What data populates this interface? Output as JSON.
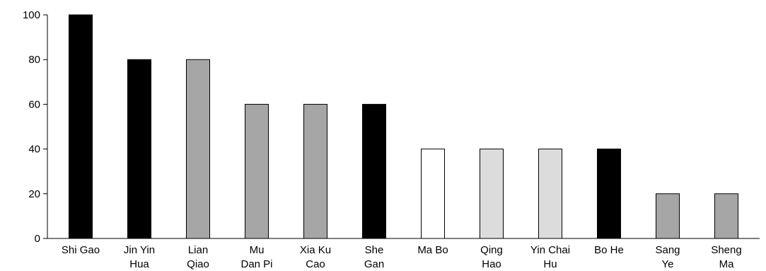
{
  "chart_data": {
    "type": "bar",
    "title": "",
    "xlabel": "",
    "ylabel": "",
    "ylim": [
      0,
      100
    ],
    "yticks": [
      0,
      20,
      40,
      60,
      80,
      100
    ],
    "grid": false,
    "legend": "none",
    "categories": [
      "Shi Gao",
      "Jin Yin Hua",
      "Lian Qiao",
      "Mu Dan Pi",
      "Xia Ku Cao",
      "She Gan",
      "Ma Bo",
      "Qing Hao",
      "Yin Chai Hu",
      "Bo He",
      "Sang Ye",
      "Sheng Ma"
    ],
    "category_label_lines": [
      [
        "Shi Gao"
      ],
      [
        "Jin Yin",
        "Hua"
      ],
      [
        "Lian",
        "Qiao"
      ],
      [
        "Mu",
        "Dan Pi"
      ],
      [
        "Xia Ku",
        "Cao"
      ],
      [
        "She",
        "Gan"
      ],
      [
        "Ma Bo"
      ],
      [
        "Qing",
        "Hao"
      ],
      [
        "Yin Chai",
        "Hu"
      ],
      [
        "Bo He"
      ],
      [
        "Sang",
        "Ye"
      ],
      [
        "Sheng",
        "Ma"
      ]
    ],
    "values": [
      100,
      80,
      80,
      60,
      60,
      60,
      40,
      40,
      40,
      40,
      20,
      20
    ],
    "bar_colors": [
      "#000000",
      "#000000",
      "#a6a6a6",
      "#a6a6a6",
      "#a6a6a6",
      "#000000",
      "#ffffff",
      "#dcdcdc",
      "#dcdcdc",
      "#000000",
      "#a6a6a6",
      "#a6a6a6"
    ],
    "bar_stroke": "#000000",
    "axis_color": "#000000"
  }
}
